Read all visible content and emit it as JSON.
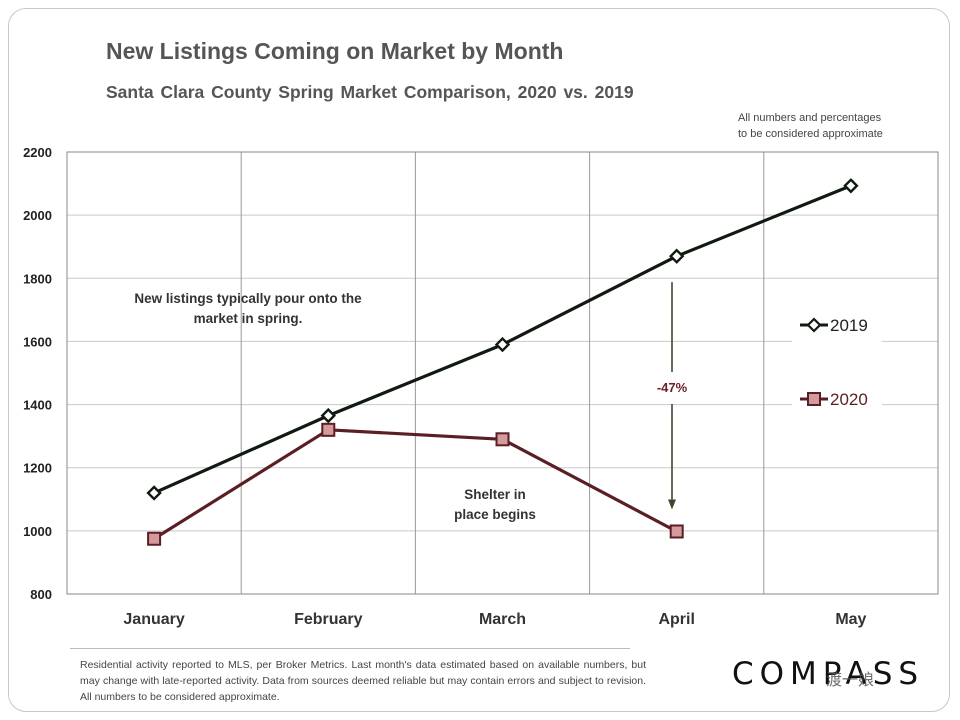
{
  "chart_data": {
    "type": "line",
    "title": "New Listings Coming on Market by Month",
    "subtitle": "Santa Clara County Spring Market Comparison,  2020 vs. 2019",
    "categories": [
      "January",
      "February",
      "March",
      "April",
      "May"
    ],
    "ylim": [
      800,
      2200
    ],
    "yticks": [
      800,
      1000,
      1200,
      1400,
      1600,
      1800,
      2000,
      2200
    ],
    "grid": true,
    "series": [
      {
        "name": "2019",
        "values": [
          1120,
          1365,
          1590,
          1870,
          2093
        ],
        "color": "#111a10",
        "marker": "diamond"
      },
      {
        "name": "2020",
        "values": [
          975,
          1320,
          1290,
          998,
          null
        ],
        "color": "#5a1f24",
        "marker": "square",
        "marker_fill": "#d79a9c"
      }
    ],
    "annotations": {
      "spring_line1": "New listings typically pour onto the",
      "spring_line2": "market in spring.",
      "shelter_line1": "Shelter in",
      "shelter_line2": "place  begins",
      "change": "-47%"
    },
    "legend_position": "right"
  },
  "note_line1": "All numbers and percentages",
  "note_line2": "to be considered approximate",
  "footnote": "Residential activity reported to MLS, per Broker Metrics. Last month's data estimated based on available numbers, but may change with late-reported activity. Data from sources deemed reliable but may contain errors and subject to revision. All numbers to be considered approximate.",
  "logo": "COMPASS",
  "watermark": "渡一娘",
  "colors": {
    "line2019": "#111a10",
    "line2020": "#5a1f24",
    "fill2020": "#d79a9c",
    "grid": "#c9c9c9"
  }
}
